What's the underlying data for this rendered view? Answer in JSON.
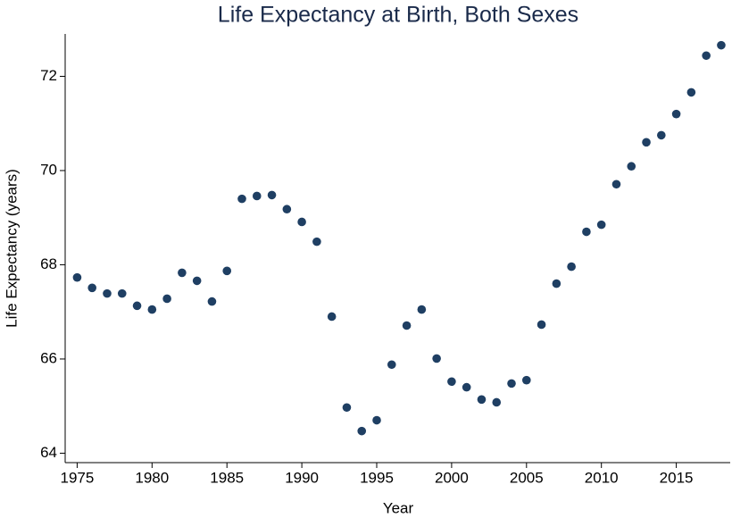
{
  "chart_data": {
    "type": "scatter",
    "title": "Life Expectancy at Birth, Both Sexes",
    "x_label": "Year",
    "y_label": "Life Expectancy (years)",
    "x": [
      1975,
      1976,
      1977,
      1978,
      1979,
      1980,
      1981,
      1982,
      1983,
      1984,
      1985,
      1986,
      1987,
      1988,
      1989,
      1990,
      1991,
      1992,
      1993,
      1994,
      1995,
      1996,
      1997,
      1998,
      1999,
      2000,
      2001,
      2002,
      2003,
      2004,
      2005,
      2006,
      2007,
      2008,
      2009,
      2010,
      2011,
      2012,
      2013,
      2014,
      2015,
      2016,
      2017,
      2018
    ],
    "values": [
      67.73,
      67.51,
      67.39,
      67.39,
      67.13,
      67.05,
      67.28,
      67.83,
      67.66,
      67.22,
      67.87,
      69.4,
      69.46,
      69.48,
      69.18,
      68.91,
      68.49,
      66.9,
      64.97,
      64.47,
      64.7,
      65.88,
      66.71,
      67.05,
      66.01,
      65.52,
      65.4,
      65.14,
      65.08,
      65.48,
      65.55,
      66.73,
      67.6,
      67.96,
      68.7,
      68.85,
      69.71,
      70.09,
      70.6,
      70.75,
      71.2,
      71.66,
      72.44,
      72.66
    ],
    "color": "#1f3f63",
    "xlim": [
      1974.2,
      2018.6
    ],
    "xticks": [
      1975,
      1980,
      1985,
      1990,
      1995,
      2000,
      2005,
      2010,
      2015
    ],
    "ylim": [
      63.8,
      72.9
    ],
    "yticks": [
      64,
      66,
      68,
      70,
      72
    ]
  }
}
